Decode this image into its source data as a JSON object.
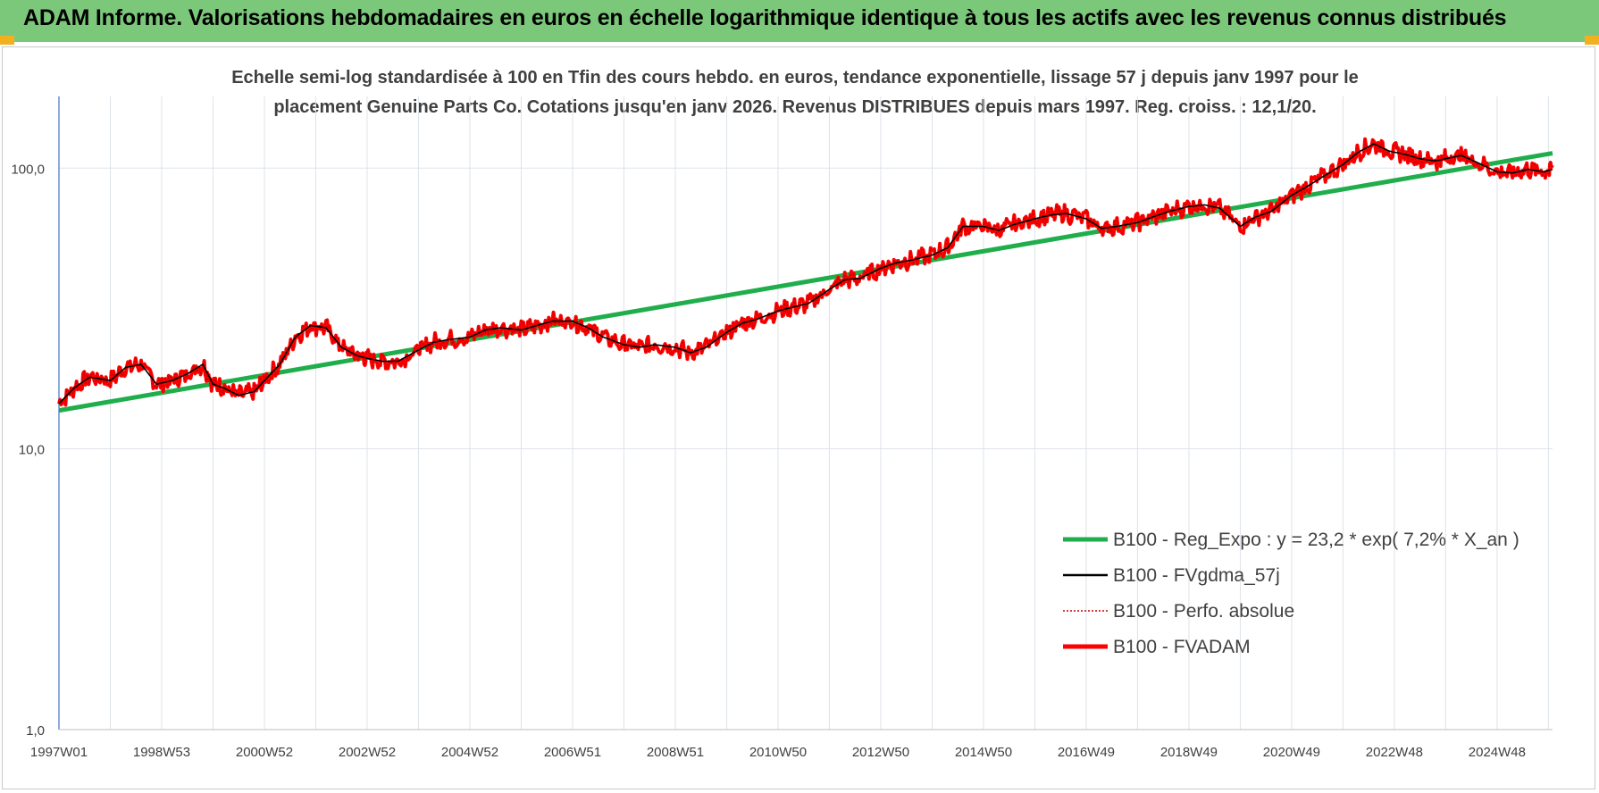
{
  "banner": {
    "title": "ADAM Informe. Valorisations hebdomadaires en euros en échelle logarithmique identique à tous les actifs avec les revenus connus distribués"
  },
  "chart_data": {
    "type": "line",
    "title_line1": "Echelle semi-log standardisée à 100 en Tfin des cours hebdo. en euros, tendance exponentielle, lissage 57 j depuis janv 1997 pour le",
    "title_line2": "placement Genuine Parts Co. Cotations jusqu'en janv 2026. Revenus DISTRIBUES depuis mars 1997. Reg. croiss. : 12,1/20.",
    "y_scale": "log",
    "ylim": [
      1,
      180
    ],
    "y_ticks": [
      {
        "value": 1,
        "label": "1,0"
      },
      {
        "value": 10,
        "label": "10,0"
      },
      {
        "value": 100,
        "label": "100,0"
      }
    ],
    "xlim": [
      1997.0,
      2026.08
    ],
    "x_ticks": [
      {
        "value": 1997.0,
        "label": "1997W01"
      },
      {
        "value": 1999.0,
        "label": "1998W53"
      },
      {
        "value": 2001.0,
        "label": "2000W52"
      },
      {
        "value": 2003.0,
        "label": "2002W52"
      },
      {
        "value": 2005.0,
        "label": "2004W52"
      },
      {
        "value": 2007.0,
        "label": "2006W51"
      },
      {
        "value": 2009.0,
        "label": "2008W51"
      },
      {
        "value": 2011.0,
        "label": "2010W50"
      },
      {
        "value": 2013.0,
        "label": "2012W50"
      },
      {
        "value": 2015.0,
        "label": "2014W50"
      },
      {
        "value": 2017.0,
        "label": "2016W49"
      },
      {
        "value": 2019.0,
        "label": "2018W49"
      },
      {
        "value": 2021.0,
        "label": "2020W49"
      },
      {
        "value": 2023.0,
        "label": "2022W48"
      },
      {
        "value": 2025.0,
        "label": "2024W48"
      }
    ],
    "grid": true,
    "legend_position": "bottom-right",
    "series": [
      {
        "name": "B100 - Reg_Expo : y = 23,2 * exp( 7,2% *  X_an )",
        "color": "#1fae4b",
        "style": "thick",
        "x": [
          1997.0,
          2026.08
        ],
        "y": [
          13.7,
          113.0
        ]
      },
      {
        "name": "B100 - FVgdma_57j",
        "color": "#000000",
        "style": "thin",
        "x": [
          1997.0,
          1997.3,
          1997.6,
          1998.0,
          1998.3,
          1998.6,
          1998.9,
          1999.2,
          1999.5,
          1999.8,
          2000.0,
          2000.2,
          2000.5,
          2000.8,
          2001.0,
          2001.3,
          2001.6,
          2001.9,
          2002.2,
          2002.5,
          2002.8,
          2003.0,
          2003.3,
          2003.6,
          2004.0,
          2004.3,
          2004.6,
          2005.0,
          2005.3,
          2005.6,
          2006.0,
          2006.3,
          2006.6,
          2007.0,
          2007.3,
          2007.6,
          2008.0,
          2008.3,
          2008.6,
          2009.0,
          2009.3,
          2009.6,
          2010.0,
          2010.3,
          2010.6,
          2011.0,
          2011.3,
          2011.6,
          2012.0,
          2012.3,
          2012.6,
          2013.0,
          2013.3,
          2013.6,
          2014.0,
          2014.3,
          2014.6,
          2015.0,
          2015.3,
          2015.6,
          2016.0,
          2016.3,
          2016.6,
          2017.0,
          2017.3,
          2017.6,
          2018.0,
          2018.3,
          2018.6,
          2019.0,
          2019.3,
          2019.6,
          2020.0,
          2020.3,
          2020.6,
          2021.0,
          2021.3,
          2021.6,
          2022.0,
          2022.3,
          2022.6,
          2022.9,
          2023.2,
          2023.5,
          2023.8,
          2024.0,
          2024.3,
          2024.6,
          2025.0,
          2025.3,
          2025.6,
          2025.9,
          2026.08
        ],
        "y": [
          14.5,
          16.5,
          18.0,
          17.5,
          19.5,
          20.0,
          17.0,
          17.5,
          18.5,
          20.0,
          17.0,
          16.5,
          15.5,
          16.0,
          17.5,
          20.0,
          25.0,
          27.5,
          27.0,
          23.0,
          21.5,
          21.0,
          20.5,
          20.5,
          22.5,
          24.0,
          24.5,
          25.0,
          26.5,
          27.0,
          26.5,
          27.5,
          28.5,
          28.5,
          27.0,
          25.0,
          23.5,
          23.0,
          23.5,
          23.0,
          22.0,
          23.0,
          26.0,
          28.0,
          29.0,
          31.0,
          32.0,
          33.0,
          37.0,
          40.0,
          40.5,
          44.0,
          46.0,
          47.0,
          49.0,
          52.0,
          62.0,
          62.0,
          60.0,
          63.0,
          66.0,
          68.0,
          69.0,
          66.0,
          61.0,
          62.0,
          64.0,
          67.0,
          70.0,
          73.0,
          74.0,
          72.0,
          62.0,
          67.0,
          70.0,
          80.0,
          86.0,
          93.0,
          103.0,
          114.0,
          122.0,
          115.0,
          112.0,
          108.0,
          106.0,
          108.0,
          111.0,
          105.0,
          97.0,
          96.0,
          99.0,
          97.0,
          99.0
        ]
      },
      {
        "name": "B100 - Perfo. absolue",
        "color": "#c00000",
        "style": "dotted"
      },
      {
        "name": "B100 - FVADAM",
        "color": "#ff0000",
        "style": "thick",
        "note_noise": "weekly series follows smoothed line with short-term fluctuation"
      }
    ]
  }
}
